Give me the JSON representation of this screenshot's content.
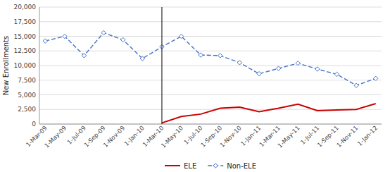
{
  "chart_data": {
    "type": "line",
    "ylabel": "New Enrollments",
    "categories": [
      "1-Mar-09",
      "1-May-09",
      "1-Jul-09",
      "1-Sep-09",
      "1-Nov-09",
      "1-Jan-10",
      "1-Mar-10",
      "1-May-10",
      "1-Jul-10",
      "1-Sep-10",
      "1-Nov-10",
      "1-Jan-11",
      "1-Mar-11",
      "1-May-11",
      "1-Jul-11",
      "1-Sep-11",
      "1-Nov-11",
      "1-Jan-12"
    ],
    "series": [
      {
        "name": "ELE",
        "color": "#cc0000",
        "line_style": "solid",
        "values": [
          null,
          null,
          null,
          null,
          null,
          null,
          200,
          1300,
          1700,
          2700,
          2900,
          2100,
          2700,
          3400,
          2300,
          2400,
          2500,
          3500
        ]
      },
      {
        "name": "Non-ELE",
        "color": "#4472c4",
        "line_style": "dashed",
        "marker": "diamond",
        "values": [
          14200,
          15000,
          11700,
          15600,
          14400,
          11200,
          13200,
          15000,
          11800,
          11700,
          10500,
          8600,
          9500,
          10400,
          9400,
          8500,
          6600,
          7800
        ]
      }
    ],
    "vline": "1-Mar-10",
    "ylim": [
      0,
      20000
    ],
    "yticks": [
      0,
      {
        "value": 2500,
        "label": "2,500"
      },
      {
        "value": 5000,
        "label": "5,000"
      },
      {
        "value": 7500,
        "label": "7,500"
      },
      {
        "value": 10000,
        "label": "10,000"
      },
      {
        "value": 12500,
        "label": "12,500"
      },
      {
        "value": 15000,
        "label": "15,000"
      },
      {
        "value": 17500,
        "label": "17,500"
      },
      {
        "value": 20000,
        "label": "20,000"
      }
    ],
    "grid": true,
    "legend": "bottom"
  }
}
